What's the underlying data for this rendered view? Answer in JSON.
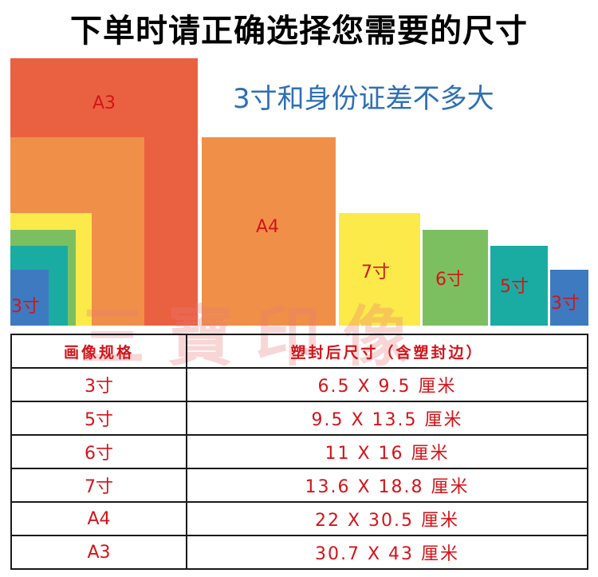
{
  "title": "下单时请正确选择您需要的尺寸",
  "subtitle": "3寸和身份证差不多大",
  "watermark": "三寶印像",
  "colors": {
    "a3": "#ea6141",
    "a4": "#f09048",
    "seven": "#fbea4a",
    "six": "#7cbf61",
    "five": "#1aaca2",
    "three": "#3d7ac0",
    "label": "#d4141a",
    "subtitle": "#2f6fb5"
  },
  "boxes": {
    "a3": "A3",
    "a4": "A4",
    "seven": "7寸",
    "six": "6寸",
    "five": "5寸",
    "three_small": "3寸",
    "three_nested": "3寸"
  },
  "table": {
    "headers": [
      "画像规格",
      "塑封后尺寸（含塑封边）"
    ],
    "rows": [
      {
        "size": "3寸",
        "dims": "6.5 X 9.5 厘米"
      },
      {
        "size": "5寸",
        "dims": "9.5 X 13.5 厘米"
      },
      {
        "size": "6寸",
        "dims": "11 X 16 厘米"
      },
      {
        "size": "7寸",
        "dims": "13.6 X 18.8 厘米"
      },
      {
        "size": "A4",
        "dims": "22 X 30.5 厘米"
      },
      {
        "size": "A3",
        "dims": "30.7 X 43 厘米"
      }
    ]
  }
}
